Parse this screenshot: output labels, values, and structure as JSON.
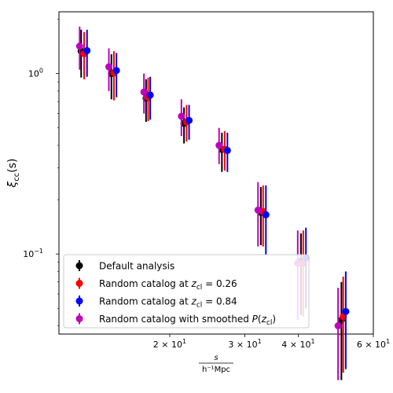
{
  "chart_data": {
    "type": "scatter",
    "xscale": "log",
    "yscale": "log",
    "xlim": [
      11.0,
      60.0
    ],
    "ylim": [
      0.036,
      2.2
    ],
    "ylabel": "ξ_cc(s)",
    "xlabel": "s / h⁻¹Mpc",
    "xlabel_numerator": "s",
    "xlabel_denominator": "h⁻¹Mpc",
    "ylabel_main": "ξ",
    "ylabel_sub": "cc",
    "ylabel_tail": "(s)",
    "x_ticks": [
      {
        "value": 20,
        "base": "2 × 10",
        "exp": "1"
      },
      {
        "value": 30,
        "base": "3 × 10",
        "exp": "1"
      },
      {
        "value": 40,
        "base": "4 × 10",
        "exp": "1"
      },
      {
        "value": 60,
        "base": "6 × 10",
        "exp": "1"
      }
    ],
    "y_ticks": [
      {
        "value": 1.0,
        "base": "10",
        "exp": "0"
      },
      {
        "value": 0.1,
        "base": "10",
        "exp": "−1"
      }
    ],
    "legend_position": "lower-left",
    "series": [
      {
        "name": "Default analysis",
        "legend_parts": [
          {
            "t": "Default analysis"
          }
        ],
        "color": "#000000",
        "x": [
          12.4,
          14.6,
          17.6,
          21.6,
          26.5,
          32.7,
          40.6,
          50.5
        ],
        "y": [
          1.33,
          1.0,
          0.73,
          0.53,
          0.38,
          0.17,
          0.091,
          0.043
        ],
        "ylo": [
          0.95,
          0.72,
          0.54,
          0.41,
          0.285,
          0.112,
          0.046,
          0.02
        ],
        "yhi": [
          1.75,
          1.28,
          0.93,
          0.65,
          0.47,
          0.235,
          0.13,
          0.07
        ]
      },
      {
        "name": "Random catalog at z_cl = 0.26",
        "legend_parts": [
          {
            "t": "Random catalog at "
          },
          {
            "t": "z",
            "i": true
          },
          {
            "t": "cl",
            "sub": true
          },
          {
            "t": " = 0.26"
          }
        ],
        "color": "#ff0000",
        "x": [
          12.6,
          14.8,
          17.8,
          21.9,
          26.9,
          33.1,
          41.1,
          51.0
        ],
        "y": [
          1.29,
          1.01,
          0.74,
          0.54,
          0.38,
          0.172,
          0.089,
          0.045
        ],
        "ylo": [
          0.93,
          0.71,
          0.545,
          0.42,
          0.29,
          0.11,
          0.045,
          0.022
        ],
        "yhi": [
          1.7,
          1.33,
          0.95,
          0.67,
          0.48,
          0.24,
          0.135,
          0.075
        ]
      },
      {
        "name": "Random catalog at z_cl = 0.84",
        "legend_parts": [
          {
            "t": "Random catalog at "
          },
          {
            "t": "z",
            "i": true
          },
          {
            "t": "cl",
            "sub": true
          },
          {
            "t": " = 0.84"
          }
        ],
        "color": "#0000ff",
        "x": [
          12.8,
          15.0,
          18.0,
          22.2,
          27.3,
          33.6,
          41.7,
          51.7
        ],
        "y": [
          1.34,
          1.04,
          0.76,
          0.55,
          0.375,
          0.165,
          0.095,
          0.048
        ],
        "ylo": [
          0.96,
          0.74,
          0.555,
          0.43,
          0.285,
          0.098,
          0.05,
          0.023
        ],
        "yhi": [
          1.75,
          1.3,
          0.96,
          0.67,
          0.47,
          0.24,
          0.14,
          0.08
        ]
      },
      {
        "name": "Random catalog with smoothed P(z_cl)",
        "legend_parts": [
          {
            "t": "Random catalog with smoothed "
          },
          {
            "t": "P",
            "i": true
          },
          {
            "t": "("
          },
          {
            "t": "z",
            "i": true
          },
          {
            "t": "cl",
            "sub": true
          },
          {
            "t": ")"
          }
        ],
        "color": "#bf00bf",
        "x": [
          12.3,
          14.4,
          17.4,
          21.3,
          26.1,
          32.2,
          39.9,
          49.6
        ],
        "y": [
          1.42,
          1.09,
          0.79,
          0.58,
          0.4,
          0.175,
          0.089,
          0.04
        ],
        "ylo": [
          1.05,
          0.8,
          0.6,
          0.45,
          0.315,
          0.11,
          0.043,
          0.02
        ],
        "yhi": [
          1.82,
          1.38,
          1.0,
          0.72,
          0.5,
          0.25,
          0.135,
          0.065
        ]
      }
    ]
  }
}
